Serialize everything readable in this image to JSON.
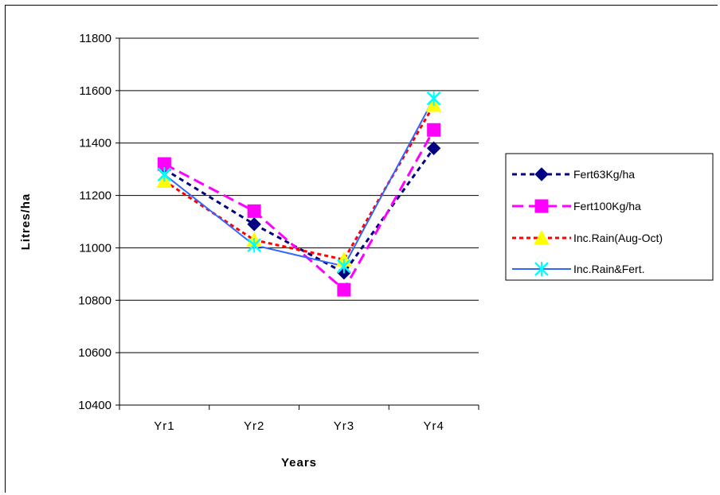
{
  "chart_data": {
    "type": "line",
    "categories": [
      "Yr1",
      "Yr2",
      "Yr3",
      "Yr4"
    ],
    "xlabel": "Years",
    "ylabel": "Litres/ha",
    "ylim": [
      10400,
      11800
    ],
    "yticks": [
      10400,
      10600,
      10800,
      11000,
      11200,
      11400,
      11600,
      11800
    ],
    "grid": true,
    "legend_position": "right",
    "series": [
      {
        "name": "Fert63Kg/ha",
        "values": [
          11300,
          11090,
          10905,
          11380
        ],
        "color": "#000080",
        "marker": "diamond",
        "dash": "dashed"
      },
      {
        "name": "Fert100Kg/ha",
        "values": [
          11320,
          11140,
          10840,
          11450
        ],
        "color": "#ff00ff",
        "marker": "square",
        "dash": "long-dash"
      },
      {
        "name": "Inc.Rain(Aug-Oct)",
        "values": [
          11255,
          11030,
          10955,
          11545
        ],
        "color": "#ff0000",
        "marker": "triangle",
        "marker_color": "#ffff00",
        "dash": "dotted"
      },
      {
        "name": "Inc.Rain&Fert.",
        "values": [
          11280,
          11010,
          10930,
          11570
        ],
        "color": "#3366ff",
        "marker": "x-star",
        "marker_color": "#00ffff",
        "dash": "solid"
      }
    ]
  }
}
